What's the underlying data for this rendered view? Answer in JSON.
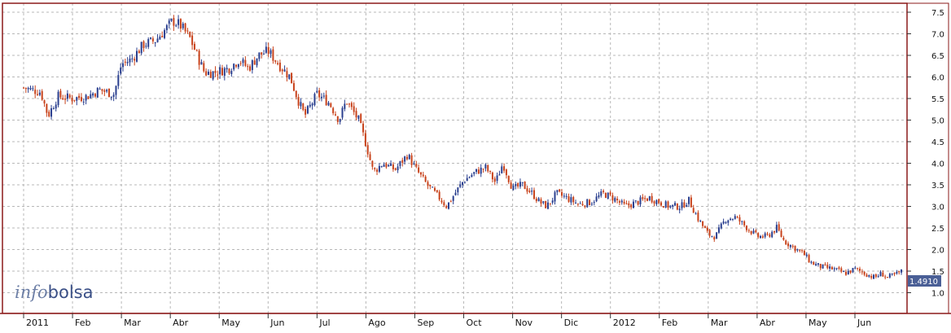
{
  "chart_data": {
    "type": "candlestick",
    "brand": {
      "part1": "info",
      "part2": "bolsa"
    },
    "last_price_label": "1.4910",
    "ylim": [
      0.8,
      7.9
    ],
    "yticks": [
      "7.5",
      "7.0",
      "6.5",
      "6.0",
      "5.5",
      "5.0",
      "4.5",
      "4.0",
      "3.5",
      "3.0",
      "2.5",
      "2.0",
      "1.5",
      "1.0"
    ],
    "xlim": [
      0,
      18.25
    ],
    "xticks": [
      {
        "label": "2011",
        "t": 0
      },
      {
        "label": "Feb",
        "t": 1
      },
      {
        "label": "Mar",
        "t": 2
      },
      {
        "label": "Abr",
        "t": 3
      },
      {
        "label": "May",
        "t": 4
      },
      {
        "label": "Jun",
        "t": 5
      },
      {
        "label": "Jul",
        "t": 6
      },
      {
        "label": "Ago",
        "t": 7
      },
      {
        "label": "Sep",
        "t": 8
      },
      {
        "label": "Oct",
        "t": 9
      },
      {
        "label": "Nov",
        "t": 10
      },
      {
        "label": "Dic",
        "t": 11
      },
      {
        "label": "2012",
        "t": 12
      },
      {
        "label": "Feb",
        "t": 13
      },
      {
        "label": "Mar",
        "t": 14
      },
      {
        "label": "Abr",
        "t": 15
      },
      {
        "label": "May",
        "t": 16
      },
      {
        "label": "Jun",
        "t": 17
      }
    ],
    "grid": true,
    "colors": {
      "up": "#2a3f8f",
      "down": "#c8431c",
      "frame": "#8b1a1a",
      "grid": "#b8b8b8",
      "price_tag": "#4a5f96"
    },
    "close_path": [
      [
        0.0,
        5.75
      ],
      [
        0.35,
        5.65
      ],
      [
        0.5,
        5.1
      ],
      [
        0.7,
        5.55
      ],
      [
        1.0,
        5.5
      ],
      [
        1.3,
        5.55
      ],
      [
        1.55,
        5.7
      ],
      [
        1.85,
        5.6
      ],
      [
        2.0,
        6.3
      ],
      [
        2.2,
        6.4
      ],
      [
        2.45,
        6.75
      ],
      [
        2.7,
        6.85
      ],
      [
        2.9,
        7.1
      ],
      [
        3.05,
        7.3
      ],
      [
        3.2,
        7.2
      ],
      [
        3.4,
        6.9
      ],
      [
        3.55,
        6.5
      ],
      [
        3.7,
        6.1
      ],
      [
        3.9,
        6.1
      ],
      [
        4.2,
        6.2
      ],
      [
        4.4,
        6.4
      ],
      [
        4.6,
        6.2
      ],
      [
        4.8,
        6.5
      ],
      [
        5.0,
        6.6
      ],
      [
        5.25,
        6.25
      ],
      [
        5.45,
        6.0
      ],
      [
        5.6,
        5.5
      ],
      [
        5.75,
        5.1
      ],
      [
        6.0,
        5.6
      ],
      [
        6.25,
        5.4
      ],
      [
        6.45,
        5.0
      ],
      [
        6.6,
        5.45
      ],
      [
        6.85,
        5.0
      ],
      [
        7.0,
        4.45
      ],
      [
        7.15,
        3.8
      ],
      [
        7.35,
        4.0
      ],
      [
        7.6,
        3.85
      ],
      [
        7.85,
        4.2
      ],
      [
        8.0,
        3.9
      ],
      [
        8.25,
        3.5
      ],
      [
        8.5,
        3.2
      ],
      [
        8.65,
        3.0
      ],
      [
        8.85,
        3.35
      ],
      [
        9.0,
        3.6
      ],
      [
        9.25,
        3.8
      ],
      [
        9.45,
        3.9
      ],
      [
        9.65,
        3.55
      ],
      [
        9.8,
        4.0
      ],
      [
        10.0,
        3.4
      ],
      [
        10.2,
        3.5
      ],
      [
        10.4,
        3.3
      ],
      [
        10.55,
        3.1
      ],
      [
        10.7,
        3.0
      ],
      [
        10.9,
        3.3
      ],
      [
        11.1,
        3.2
      ],
      [
        11.35,
        3.05
      ],
      [
        11.6,
        3.1
      ],
      [
        11.85,
        3.3
      ],
      [
        12.05,
        3.2
      ],
      [
        12.3,
        3.0
      ],
      [
        12.55,
        3.1
      ],
      [
        12.8,
        3.2
      ],
      [
        13.0,
        3.1
      ],
      [
        13.2,
        3.0
      ],
      [
        13.45,
        3.0
      ],
      [
        13.6,
        3.15
      ],
      [
        13.8,
        2.7
      ],
      [
        14.0,
        2.35
      ],
      [
        14.15,
        2.3
      ],
      [
        14.35,
        2.7
      ],
      [
        14.55,
        2.75
      ],
      [
        14.8,
        2.5
      ],
      [
        15.0,
        2.3
      ],
      [
        15.2,
        2.3
      ],
      [
        15.4,
        2.5
      ],
      [
        15.55,
        2.2
      ],
      [
        15.75,
        2.05
      ],
      [
        15.95,
        1.9
      ],
      [
        16.1,
        1.7
      ],
      [
        16.3,
        1.6
      ],
      [
        16.55,
        1.55
      ],
      [
        16.8,
        1.45
      ],
      [
        17.0,
        1.55
      ],
      [
        17.2,
        1.45
      ],
      [
        17.4,
        1.35
      ],
      [
        17.55,
        1.45
      ],
      [
        17.65,
        1.35
      ],
      [
        17.8,
        1.4
      ],
      [
        17.95,
        1.49
      ]
    ]
  }
}
